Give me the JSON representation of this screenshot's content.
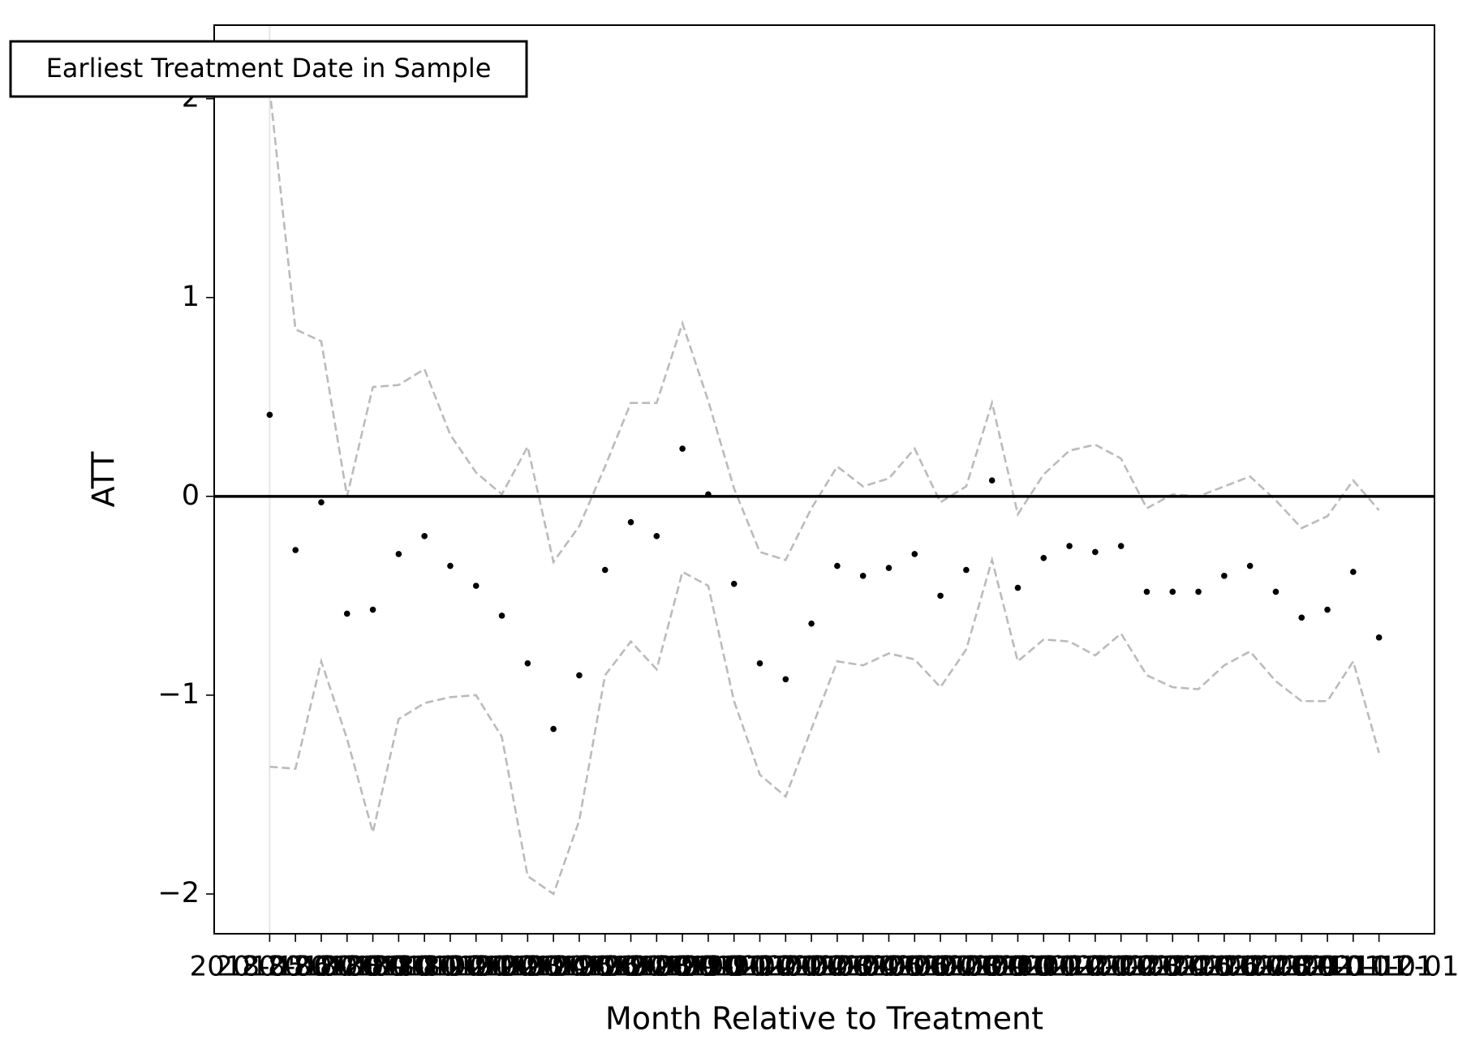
{
  "chart_data": {
    "type": "scatter",
    "x_label": "Month Relative to Treatment",
    "y_label": "ATT",
    "categories": [
      "2018-05-01",
      "2018-06-01",
      "2018-07-01",
      "2018-08-01",
      "2018-09-01",
      "2018-10-01",
      "2018-11-01",
      "2018-12-01",
      "2019-01-01",
      "2019-02-01",
      "2019-03-01",
      "2019-04-01",
      "2019-05-01",
      "2019-06-01",
      "2019-07-01",
      "2019-08-01",
      "2019-09-01",
      "2019-10-01",
      "2019-11-01",
      "2019-12-01",
      "2020-01-01",
      "2020-02-01",
      "2020-03-01",
      "2020-04-01",
      "2020-05-01",
      "2020-06-01",
      "2020-07-01",
      "2020-08-01",
      "2020-09-01",
      "2020-10-01",
      "2020-11-01",
      "2020-12-01",
      "2021-01-01",
      "2021-02-01",
      "2021-03-01",
      "2021-04-01",
      "2021-05-01",
      "2021-06-01",
      "2021-07-01",
      "2021-08-01",
      "2021-09-01",
      "2021-10-01",
      "2021-11-01",
      "2021-12-01"
    ],
    "series": [
      {
        "color": "#000000",
        "style": "points",
        "values": [
          0.41,
          -0.27,
          -0.03,
          -0.59,
          -0.57,
          -0.29,
          -0.2,
          -0.35,
          -0.45,
          -0.6,
          -0.84,
          -1.17,
          -0.9,
          -0.37,
          -0.13,
          -0.2,
          0.24,
          0.01,
          -0.44,
          -0.84,
          -0.92,
          -0.64,
          -0.35,
          -0.4,
          -0.36,
          -0.29,
          -0.5,
          -0.37,
          0.08,
          -0.46,
          -0.31,
          -0.25,
          -0.28,
          -0.25,
          -0.48,
          -0.48,
          -0.48,
          -0.4,
          -0.35,
          -0.48,
          -0.61,
          -0.57,
          -0.38,
          -0.71
        ]
      },
      {
        "color": "#bbbbbb",
        "style": "dashed",
        "values": [
          2.05,
          0.84,
          0.78,
          0.0,
          0.55,
          0.56,
          0.64,
          0.31,
          0.12,
          0.01,
          0.25,
          -0.33,
          -0.15,
          0.15,
          0.47,
          0.47,
          0.87,
          0.48,
          0.04,
          -0.28,
          -0.32,
          -0.06,
          0.15,
          0.05,
          0.09,
          0.24,
          -0.03,
          0.05,
          0.47,
          -0.09,
          0.11,
          0.23,
          0.26,
          0.19,
          -0.06,
          0.01,
          0.0,
          0.05,
          0.1,
          -0.02,
          -0.16,
          -0.1,
          0.08,
          -0.07
        ]
      },
      {
        "color": "#bbbbbb",
        "style": "dashed",
        "values": [
          -1.36,
          -1.37,
          -0.83,
          -1.22,
          -1.69,
          -1.12,
          -1.04,
          -1.01,
          -1.0,
          -1.21,
          -1.91,
          -2.0,
          -1.63,
          -0.9,
          -0.73,
          -0.87,
          -0.38,
          -0.45,
          -1.03,
          -1.4,
          -1.51,
          -1.17,
          -0.83,
          -0.85,
          -0.79,
          -0.82,
          -0.96,
          -0.77,
          -0.32,
          -0.83,
          -0.72,
          -0.73,
          -0.8,
          -0.69,
          -0.9,
          -0.96,
          -0.97,
          -0.85,
          -0.78,
          -0.93,
          -1.03,
          -1.03,
          -0.83,
          -1.29
        ]
      }
    ],
    "ylim": [
      -2.2,
      2.37
    ],
    "yticks": [
      {
        "value": -2,
        "label": "−2"
      },
      {
        "value": -1,
        "label": "−1"
      },
      0,
      1,
      2
    ],
    "hline": 0,
    "annotation": {
      "text": "Earliest Treatment Date in Sample",
      "x": "2018-05-01"
    },
    "grid": false
  }
}
